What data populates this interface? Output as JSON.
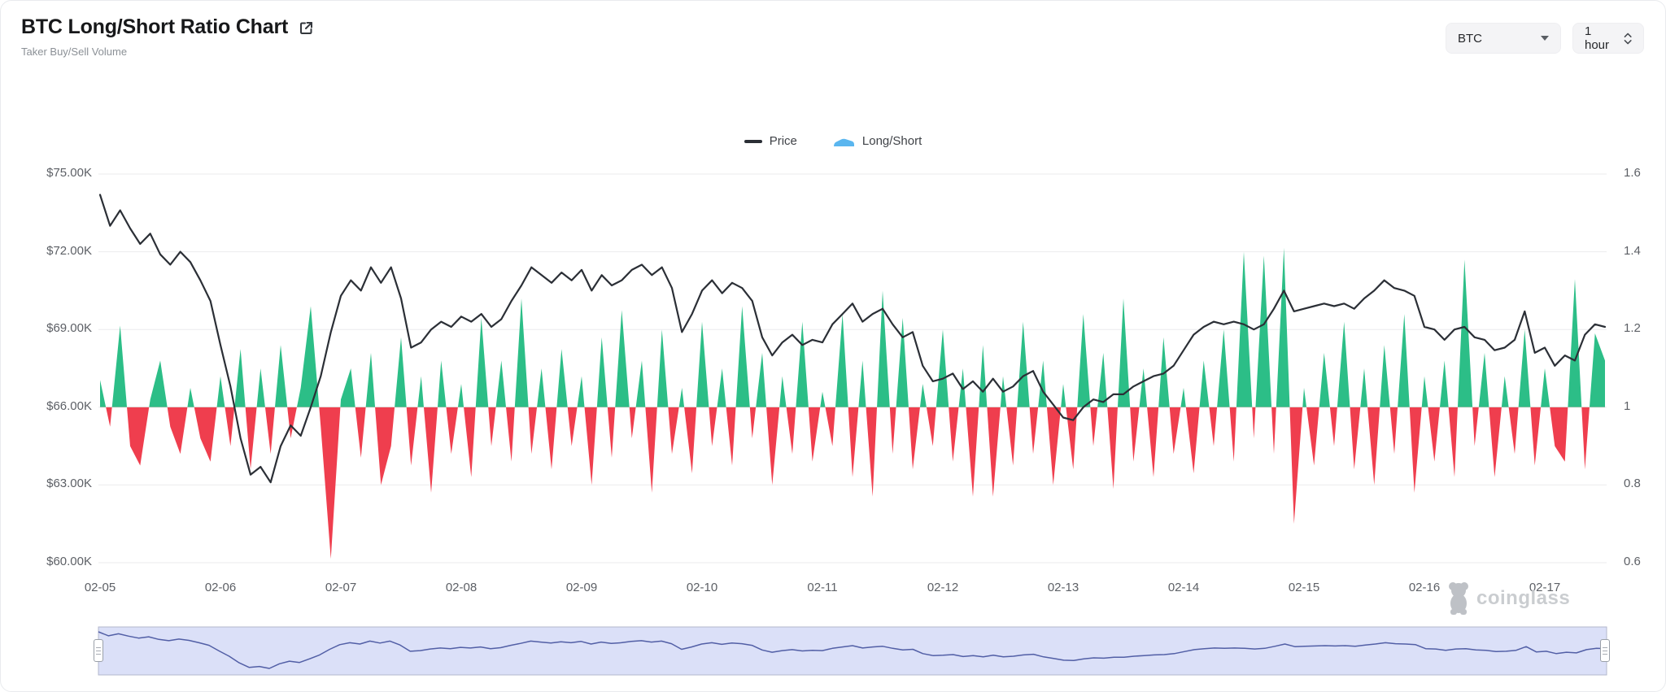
{
  "header": {
    "title": "BTC Long/Short Ratio Chart",
    "subtitle": "Taker Buy/Sell Volume"
  },
  "controls": {
    "symbol": "BTC",
    "interval": "1 hour"
  },
  "legend": {
    "price_label": "Price",
    "ratio_label": "Long/Short"
  },
  "watermark": {
    "brand": "coinglass"
  },
  "colors": {
    "up": "#2cbe87",
    "down": "#ef3e4e",
    "price_line": "#2b2f36",
    "grid": "#ebebed",
    "axis_text": "#5d6066",
    "legend_ratio_marker": "#5ab6ef",
    "nav_fill": "#dbe0f8",
    "nav_line": "#525fa6",
    "nav_border": "#b3b7cc"
  },
  "chart_data": {
    "type": "line",
    "title": "BTC Long/Short Ratio Chart",
    "subtitle": "Taker Buy/Sell Volume",
    "grid": true,
    "legend_position": "top-center",
    "x_axis": {
      "tick_labels": [
        "02-05",
        "02-06",
        "02-07",
        "02-08",
        "02-09",
        "02-10",
        "02-11",
        "02-12",
        "02-13",
        "02-14",
        "02-15",
        "02-16",
        "02-17"
      ],
      "start_day": 5,
      "step_days": 0.083333,
      "end_day": 17.5
    },
    "y_axis_left": {
      "tick_labels": [
        "$75.00K",
        "$72.00K",
        "$69.00K",
        "$66.00K",
        "$63.00K",
        "$60.00K"
      ],
      "max": 75000,
      "min": 60000
    },
    "y_axis_right": {
      "tick_labels": [
        "1.6",
        "1.4",
        "1.2",
        "1",
        "0.8",
        "0.6"
      ],
      "max": 1.6,
      "min": 0.6
    },
    "series": [
      {
        "name": "Price",
        "type": "line",
        "axis": "left",
        "unit": "K USD",
        "values": [
          74.2,
          73.0,
          73.6,
          72.9,
          72.3,
          72.7,
          71.9,
          71.5,
          72.0,
          71.6,
          70.9,
          70.1,
          68.4,
          66.8,
          64.8,
          63.4,
          63.7,
          63.1,
          64.5,
          65.3,
          64.9,
          66.0,
          67.2,
          68.9,
          70.3,
          70.9,
          70.5,
          71.4,
          70.8,
          71.4,
          70.2,
          68.3,
          68.5,
          69.0,
          69.3,
          69.1,
          69.5,
          69.3,
          69.6,
          69.1,
          69.4,
          70.1,
          70.7,
          71.4,
          71.1,
          70.8,
          71.2,
          70.9,
          71.3,
          70.5,
          71.1,
          70.7,
          70.9,
          71.3,
          71.5,
          71.1,
          71.4,
          70.6,
          68.9,
          69.6,
          70.5,
          70.9,
          70.4,
          70.8,
          70.6,
          70.1,
          68.7,
          68.0,
          68.5,
          68.8,
          68.4,
          68.6,
          68.5,
          69.2,
          69.6,
          70.0,
          69.3,
          69.6,
          69.8,
          69.2,
          68.7,
          68.9,
          67.6,
          67.0,
          67.1,
          67.3,
          66.7,
          67.0,
          66.6,
          67.1,
          66.6,
          66.8,
          67.2,
          67.4,
          66.6,
          66.1,
          65.6,
          65.5,
          66.0,
          66.3,
          66.2,
          66.5,
          66.5,
          66.8,
          67.0,
          67.2,
          67.3,
          67.6,
          68.2,
          68.8,
          69.1,
          69.3,
          69.2,
          69.3,
          69.2,
          69.0,
          69.2,
          69.8,
          70.5,
          69.7,
          69.8,
          69.9,
          70.0,
          69.9,
          70.0,
          69.8,
          70.2,
          70.5,
          70.9,
          70.6,
          70.5,
          70.3,
          69.1,
          69.0,
          68.6,
          69.0,
          69.1,
          68.7,
          68.6,
          68.2,
          68.3,
          68.6,
          69.7,
          68.1,
          68.3,
          67.6,
          68.0,
          67.8,
          68.8,
          69.2,
          69.1
        ]
      },
      {
        "name": "Long/Short",
        "type": "area",
        "axis": "right",
        "baseline": 1,
        "values": [
          1.07,
          0.95,
          1.21,
          0.9,
          0.85,
          1.02,
          1.12,
          0.95,
          0.88,
          1.05,
          0.92,
          0.86,
          1.08,
          0.9,
          1.15,
          0.84,
          1.1,
          0.88,
          1.16,
          0.92,
          1.05,
          1.26,
          0.95,
          0.61,
          1.02,
          1.1,
          0.87,
          1.14,
          0.8,
          0.9,
          1.18,
          0.85,
          1.08,
          0.78,
          1.12,
          0.88,
          1.06,
          0.82,
          1.23,
          0.9,
          1.12,
          0.86,
          1.28,
          0.88,
          1.1,
          0.84,
          1.15,
          0.9,
          1.08,
          0.8,
          1.18,
          0.87,
          1.25,
          0.92,
          1.12,
          0.78,
          1.2,
          0.88,
          1.05,
          0.83,
          1.22,
          0.9,
          1.1,
          0.85,
          1.26,
          0.92,
          1.14,
          0.8,
          1.08,
          0.88,
          1.22,
          0.86,
          1.04,
          0.9,
          1.24,
          0.82,
          1.12,
          0.77,
          1.3,
          0.88,
          1.23,
          0.84,
          1.06,
          0.9,
          1.2,
          0.86,
          1.1,
          0.77,
          1.16,
          0.77,
          1.08,
          0.85,
          1.22,
          0.88,
          1.12,
          0.8,
          1.06,
          0.84,
          1.24,
          0.9,
          1.14,
          0.79,
          1.28,
          0.86,
          1.1,
          0.82,
          1.18,
          0.88,
          1.05,
          0.83,
          1.12,
          0.9,
          1.2,
          0.86,
          1.4,
          0.92,
          1.39,
          0.88,
          1.41,
          0.7,
          1.05,
          0.85,
          1.14,
          0.9,
          1.22,
          0.84,
          1.1,
          0.8,
          1.16,
          0.88,
          1.24,
          0.78,
          1.08,
          0.86,
          1.12,
          0.82,
          1.38,
          0.9,
          1.14,
          0.82,
          1.08,
          0.88,
          1.2,
          0.85,
          1.1,
          0.9,
          0.86,
          1.33,
          0.84,
          1.19,
          1.12
        ]
      }
    ]
  }
}
